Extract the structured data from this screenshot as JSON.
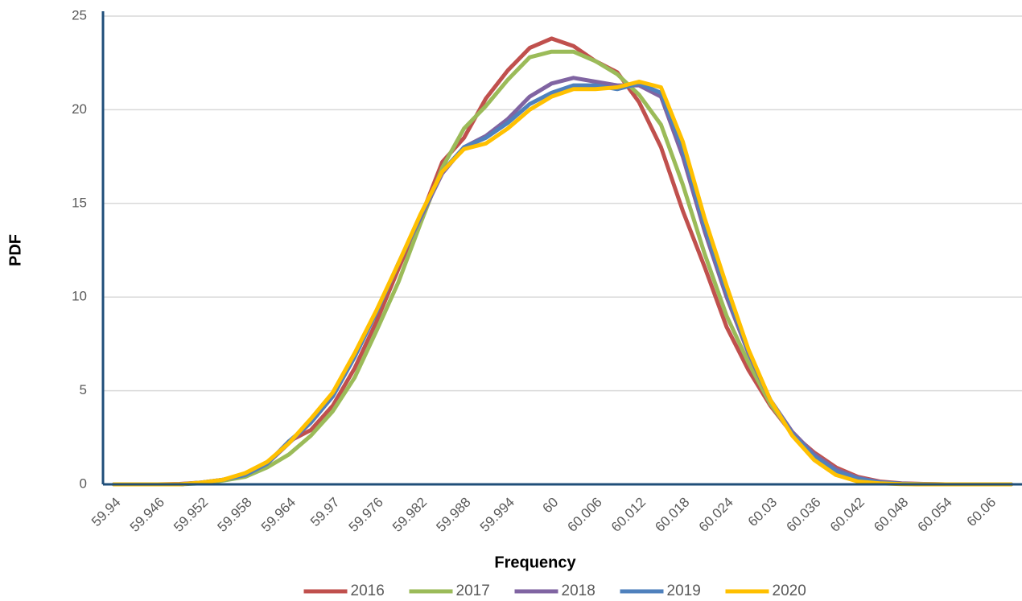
{
  "chart_data": {
    "type": "line",
    "x_label": "Frequency",
    "y_label": "PDF",
    "categories": [
      "59.94",
      null,
      "59.946",
      null,
      "59.952",
      null,
      "59.958",
      null,
      "59.964",
      null,
      "59.97",
      null,
      "59.976",
      null,
      "59.982",
      null,
      "59.988",
      null,
      "59.994",
      null,
      "60",
      null,
      "60.006",
      null,
      "60.012",
      null,
      "60.018",
      null,
      "60.024",
      null,
      "60.03",
      null,
      "60.036",
      null,
      "60.042",
      null,
      "60.048",
      null,
      "60.054",
      null,
      "60.06",
      null
    ],
    "series": [
      {
        "name": "2016",
        "color": "#c0504d",
        "values": [
          0,
          0,
          0,
          0.02,
          0.1,
          0.25,
          0.5,
          1.1,
          2.3,
          2.9,
          4.2,
          6.2,
          8.7,
          11.5,
          14.2,
          17.2,
          18.5,
          20.6,
          22.1,
          23.3,
          23.8,
          23.4,
          22.6,
          22.0,
          20.4,
          18.0,
          14.6,
          11.6,
          8.4,
          6.1,
          4.2,
          2.7,
          1.7,
          0.9,
          0.4,
          0.15,
          0.05,
          0.02,
          0,
          0,
          0,
          0
        ]
      },
      {
        "name": "2017",
        "color": "#9bbb59",
        "values": [
          0,
          0,
          0,
          0,
          0.05,
          0.2,
          0.4,
          0.9,
          1.6,
          2.6,
          3.9,
          5.7,
          8.2,
          10.8,
          13.9,
          16.9,
          19.0,
          20.2,
          21.6,
          22.8,
          23.1,
          23.1,
          22.6,
          21.9,
          20.8,
          19.2,
          16.0,
          12.3,
          9.0,
          6.5,
          4.3,
          2.7,
          1.6,
          0.8,
          0.35,
          0.1,
          0.03,
          0,
          0,
          0,
          0,
          0
        ]
      },
      {
        "name": "2018",
        "color": "#8064a2",
        "values": [
          0,
          0,
          0,
          0,
          0.1,
          0.25,
          0.5,
          1.1,
          2.2,
          3.3,
          4.7,
          6.8,
          9.2,
          11.8,
          14.2,
          16.6,
          18.0,
          18.6,
          19.5,
          20.7,
          21.4,
          21.7,
          21.5,
          21.3,
          21.3,
          20.7,
          17.5,
          13.5,
          10.0,
          7.0,
          4.5,
          2.8,
          1.6,
          0.8,
          0.35,
          0.12,
          0.04,
          0.01,
          0,
          0,
          0,
          0
        ]
      },
      {
        "name": "2019",
        "color": "#4f81bd",
        "values": [
          0,
          0,
          0,
          0,
          0.1,
          0.25,
          0.5,
          1.1,
          2.3,
          3.3,
          4.7,
          6.8,
          9.2,
          11.8,
          14.3,
          16.7,
          18.0,
          18.5,
          19.3,
          20.3,
          20.9,
          21.3,
          21.3,
          21.1,
          21.4,
          20.9,
          17.9,
          13.8,
          10.3,
          7.1,
          4.5,
          2.7,
          1.5,
          0.7,
          0.3,
          0.1,
          0.03,
          0.01,
          0,
          0,
          0,
          0
        ]
      },
      {
        "name": "2020",
        "color": "#ffc000",
        "values": [
          0,
          0,
          0,
          0,
          0.1,
          0.25,
          0.6,
          1.2,
          2.2,
          3.5,
          4.9,
          7.0,
          9.3,
          11.8,
          14.4,
          16.7,
          17.9,
          18.2,
          19.0,
          20.0,
          20.7,
          21.1,
          21.1,
          21.2,
          21.5,
          21.2,
          18.3,
          14.2,
          10.6,
          7.2,
          4.5,
          2.6,
          1.3,
          0.5,
          0.15,
          0.05,
          0.01,
          0,
          0,
          0,
          0,
          0
        ]
      }
    ],
    "ylim": [
      0,
      25
    ],
    "yticks": [
      0,
      5,
      10,
      15,
      20,
      25
    ],
    "grid": true,
    "legend": "bottom",
    "axis_color": "#1f4e79"
  }
}
